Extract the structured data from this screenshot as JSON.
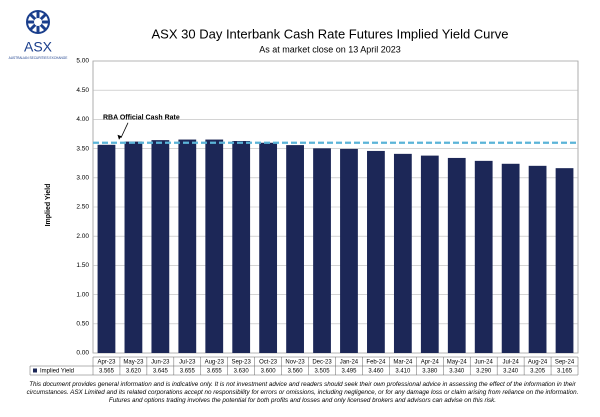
{
  "logo": {
    "name": "ASX",
    "tagline": "AUSTRALIAN SECURITIES EXCHANGE"
  },
  "chart_data": {
    "type": "bar",
    "title": "ASX 30 Day Interbank Cash Rate Futures Implied Yield Curve",
    "subtitle": "As at market close on 13 April 2023",
    "y_label": "Implied Yield",
    "categories": [
      "Apr-23",
      "May-23",
      "Jun-23",
      "Jul-23",
      "Aug-23",
      "Sep-23",
      "Oct-23",
      "Nov-23",
      "Dec-23",
      "Jan-24",
      "Feb-24",
      "Mar-24",
      "Apr-24",
      "May-24",
      "Jun-24",
      "Jul-24",
      "Aug-24",
      "Sep-24"
    ],
    "series": [
      {
        "name": "Implied Yield",
        "color": "#1c2757",
        "values": [
          3.565,
          3.62,
          3.645,
          3.655,
          3.655,
          3.63,
          3.6,
          3.56,
          3.505,
          3.495,
          3.46,
          3.41,
          3.38,
          3.34,
          3.29,
          3.24,
          3.205,
          3.165
        ],
        "value_labels": [
          "3.565",
          "3.620",
          "3.645",
          "3.655",
          "3.655",
          "3.630",
          "3.600",
          "3.560",
          "3.505",
          "3.495",
          "3.460",
          "3.410",
          "3.380",
          "3.340",
          "3.290",
          "3.240",
          "3.205",
          "3.165"
        ]
      }
    ],
    "reference_line": {
      "label": "RBA Official Cash Rate",
      "value": 3.6,
      "color": "#5bb4d8"
    },
    "ylim": [
      0,
      5
    ],
    "yticks": [
      {
        "value": 0,
        "label": "0.00"
      },
      {
        "value": 0.5,
        "label": "0.50"
      },
      {
        "value": 1,
        "label": "1.00"
      },
      {
        "value": 1.5,
        "label": "1.50"
      },
      {
        "value": 2,
        "label": "2.00"
      },
      {
        "value": 2.5,
        "label": "2.50"
      },
      {
        "value": 3,
        "label": "3.00"
      },
      {
        "value": 3.5,
        "label": "3.50"
      },
      {
        "value": 4,
        "label": "4.00"
      },
      {
        "value": 4.5,
        "label": "4.50"
      },
      {
        "value": 5,
        "label": "5.00"
      }
    ],
    "grid": true
  },
  "disclaimer": "This document provides general information and is indicative only. It is not investment advice and readers should seek their own professional advice in assessing the effect of the information in their circumstances. ASX Limited and its related corporations accept no responsibility for errors or omissions, including negligence, or for any damage loss or claim arising from reliance on the information. Futures and options trading involves the potential for both profits and losses and only licensed brokers and advisors can advise on this risk."
}
